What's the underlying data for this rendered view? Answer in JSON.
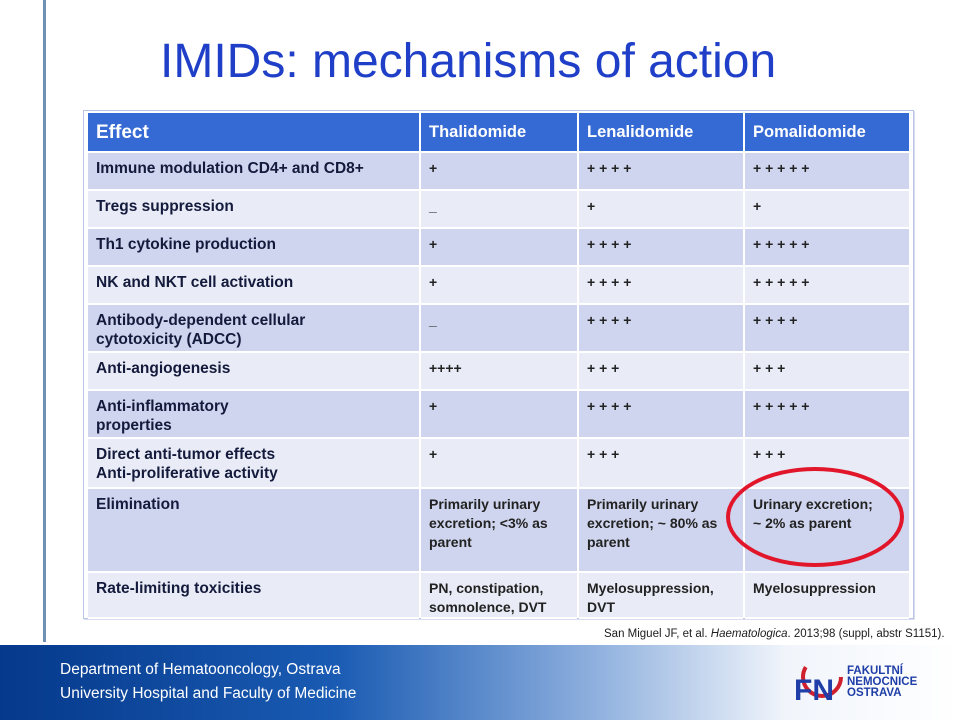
{
  "slide": {
    "title": "IMIDs: mechanisms of action"
  },
  "table": {
    "headers": [
      "Effect",
      "Thalidomide",
      "Lenalidomide",
      "Pomalidomide"
    ],
    "rows": [
      {
        "effect": "Immune modulation CD4+ and CD8+",
        "thalidomide": "+",
        "lenalidomide": "+ + + +",
        "pomalidomide": "+ + + + +"
      },
      {
        "effect": "Tregs suppression",
        "thalidomide": "_",
        "lenalidomide": "+",
        "pomalidomide": "+"
      },
      {
        "effect": "Th1 cytokine production",
        "thalidomide": "+",
        "lenalidomide": "+ + + +",
        "pomalidomide": "+ + + + +"
      },
      {
        "effect": "NK and NKT cell activation",
        "thalidomide": "+",
        "lenalidomide": "+ + + +",
        "pomalidomide": "+ + + + +"
      },
      {
        "effect_lines": [
          "Antibody-dependent cellular",
          "cytotoxicity (ADCC)"
        ],
        "thalidomide": "_",
        "lenalidomide": "+ + + +",
        "pomalidomide": "+ + + +"
      },
      {
        "effect": "Anti-angiogenesis",
        "thalidomide": "++++",
        "lenalidomide": "+ + +",
        "pomalidomide": "+ + +"
      },
      {
        "effect_lines": [
          "Anti-inflammatory",
          "properties"
        ],
        "thalidomide": "+",
        "lenalidomide": "+ + + +",
        "pomalidomide": "+ + + + +"
      },
      {
        "effect_lines": [
          "Direct anti-tumor effects",
          "Anti-proliferative activity"
        ],
        "thalidomide": "+",
        "lenalidomide": "+ + +",
        "pomalidomide": "+ + +"
      },
      {
        "effect": "Elimination",
        "thalidomide_lines": [
          "Primarily urinary",
          "excretion; <3% as",
          "parent"
        ],
        "lenalidomide_lines": [
          "Primarily urinary",
          "excretion; ~ 80% as",
          "parent"
        ],
        "pomalidomide_lines": [
          "Urinary excretion;",
          "~ 2% as parent"
        ]
      },
      {
        "effect": "Rate-limiting toxicities",
        "thalidomide_lines": [
          "PN, constipation,",
          "somnolence, DVT"
        ],
        "lenalidomide_lines": [
          "Myelosuppression,",
          "DVT"
        ],
        "pomalidomide": "Myelosuppression"
      }
    ]
  },
  "highlight": {
    "color": "#e2162b",
    "target": "pomalidomide elimination cell"
  },
  "citation": {
    "authors": "San Miguel JF, et al.",
    "journal": "Haematologica",
    "details": "2013;98 (suppl, abstr S1151)."
  },
  "footer": {
    "department": "Department of Hematooncology,  Ostrava",
    "hospital": "University Hospital  and Faculty of Medicine",
    "logo": {
      "initials": "FN",
      "line1": "FAKULTNÍ",
      "line2": "NEMOCNICE",
      "line3": "OSTRAVA"
    }
  },
  "colors": {
    "title": "#1f3fc8",
    "header": "#3569d4",
    "row_dark": "#cfd5ee",
    "row_light": "#e9ecf6",
    "footer": "#05398b"
  }
}
